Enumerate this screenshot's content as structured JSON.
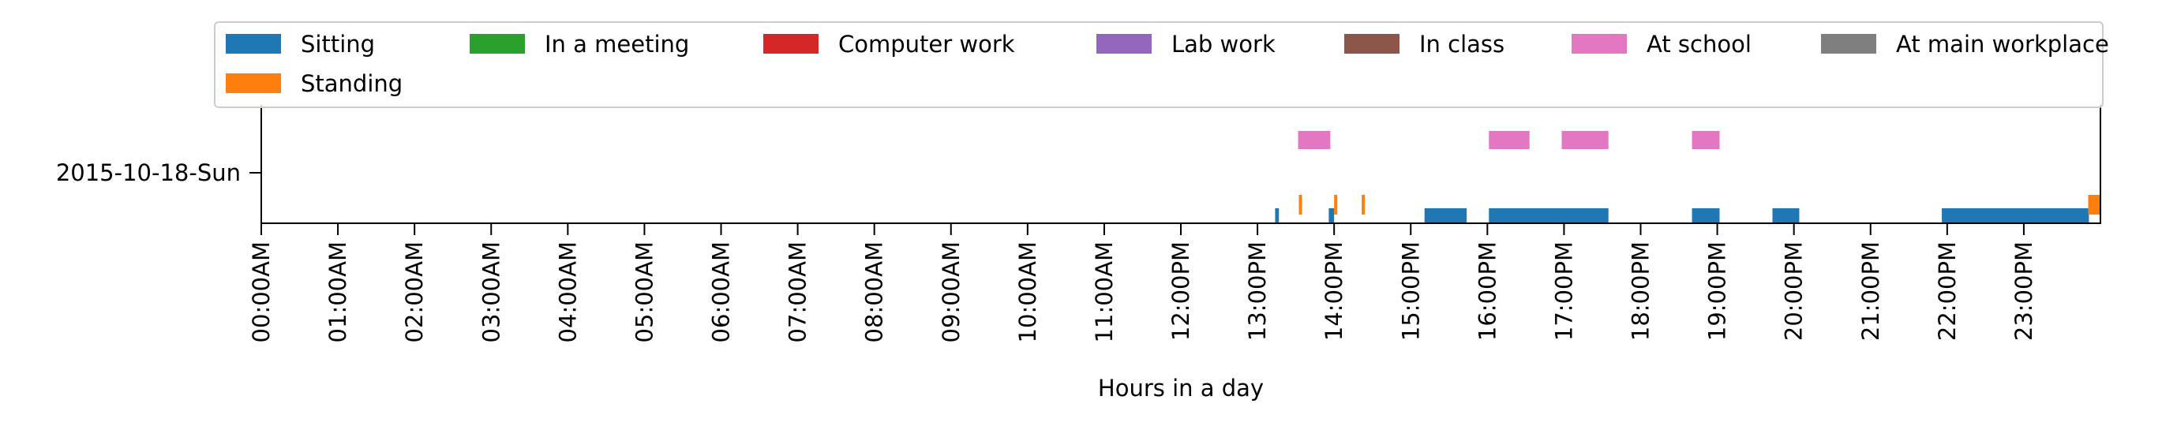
{
  "chart_data": {
    "type": "timeline",
    "xlabel": "Hours in a day",
    "ylabel": "",
    "xlim": [
      0,
      24
    ],
    "grid": false,
    "legend_placement": "top",
    "categories": [
      "2015-10-18-Sun"
    ],
    "x_ticks": [
      "00:00AM",
      "01:00AM",
      "02:00AM",
      "03:00AM",
      "04:00AM",
      "05:00AM",
      "06:00AM",
      "07:00AM",
      "08:00AM",
      "09:00AM",
      "10:00AM",
      "11:00AM",
      "12:00PM",
      "13:00PM",
      "14:00PM",
      "15:00PM",
      "16:00PM",
      "17:00PM",
      "18:00PM",
      "19:00PM",
      "20:00PM",
      "21:00PM",
      "22:00PM",
      "23:00PM"
    ],
    "series": [
      {
        "name": "Sitting",
        "color": "#1f77b4",
        "lane": 0,
        "intervals": [
          [
            13.23,
            13.28
          ],
          [
            13.93,
            14.0
          ],
          [
            15.18,
            15.73
          ],
          [
            16.02,
            17.58
          ],
          [
            18.67,
            19.03
          ],
          [
            19.72,
            20.07
          ],
          [
            21.93,
            23.85
          ]
        ]
      },
      {
        "name": "Standing",
        "color": "#ff7f0e",
        "lane": 1,
        "intervals": [
          [
            13.54,
            13.58
          ],
          [
            14.0,
            14.03
          ],
          [
            14.36,
            14.4
          ],
          [
            23.84,
            24.0
          ]
        ]
      },
      {
        "name": "In a meeting",
        "color": "#2ca02c",
        "lane": 2,
        "intervals": []
      },
      {
        "name": "Computer work",
        "color": "#d62728",
        "lane": 2,
        "intervals": []
      },
      {
        "name": "Lab work",
        "color": "#9467bd",
        "lane": 2,
        "intervals": []
      },
      {
        "name": "In class",
        "color": "#8c564b",
        "lane": 2,
        "intervals": []
      },
      {
        "name": "At school",
        "color": "#e377c2",
        "lane": 3,
        "intervals": [
          [
            13.53,
            13.95
          ],
          [
            16.02,
            16.55
          ],
          [
            16.97,
            17.58
          ],
          [
            18.67,
            19.03
          ]
        ]
      },
      {
        "name": "At main workplace",
        "color": "#7f7f7f",
        "lane": 4,
        "intervals": []
      }
    ]
  }
}
